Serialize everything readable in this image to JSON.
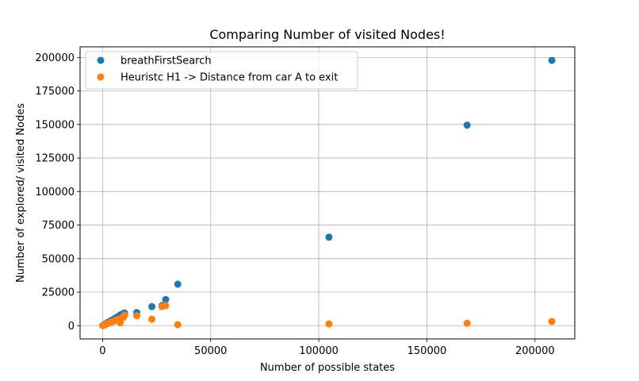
{
  "chart_data": {
    "type": "scatter",
    "title": "Comparing Number of visited Nodes!",
    "xlabel": "Number of possible states",
    "ylabel": "Number of explored/ visited Nodes",
    "xlim": [
      -10400,
      218400
    ],
    "ylim": [
      -9900,
      207900
    ],
    "xticks": [
      0,
      50000,
      100000,
      150000,
      200000
    ],
    "yticks": [
      0,
      25000,
      50000,
      75000,
      100000,
      125000,
      150000,
      175000,
      200000
    ],
    "grid": true,
    "legend_position": "top-left",
    "series": [
      {
        "name": "breathFirstSearch",
        "color": "#1f77b4",
        "x": [
          100,
          300,
          500,
          800,
          1000,
          1300,
          1600,
          2000,
          2400,
          2800,
          3200,
          3700,
          4200,
          4800,
          5400,
          6000,
          6700,
          7400,
          8200,
          8800,
          9600,
          10200,
          15800,
          22800,
          27500,
          29200,
          34800,
          104700,
          168600,
          207800
        ],
        "y": [
          100,
          250,
          450,
          700,
          950,
          1200,
          1500,
          1900,
          2300,
          2700,
          3000,
          3500,
          3900,
          4400,
          5000,
          5600,
          6300,
          7000,
          7900,
          8400,
          9000,
          9400,
          9800,
          14200,
          15000,
          19500,
          30900,
          66000,
          149500,
          197800
        ]
      },
      {
        "name": "Heuristc H1 -> Distance from car A to exit",
        "color": "#ff7f0e",
        "x": [
          100,
          300,
          500,
          800,
          1000,
          1300,
          1600,
          2000,
          2400,
          2800,
          3200,
          3700,
          4200,
          4800,
          5400,
          6000,
          6700,
          7400,
          8200,
          8800,
          9600,
          10200,
          15800,
          22800,
          27500,
          29200,
          34800,
          104700,
          168600,
          207800
        ],
        "y": [
          80,
          200,
          350,
          500,
          700,
          900,
          1100,
          1300,
          1600,
          1900,
          2200,
          2500,
          2800,
          3100,
          3500,
          3900,
          4300,
          4800,
          2200,
          5600,
          6100,
          8000,
          7400,
          4800,
          14200,
          15000,
          700,
          1300,
          1800,
          3100
        ]
      }
    ]
  }
}
